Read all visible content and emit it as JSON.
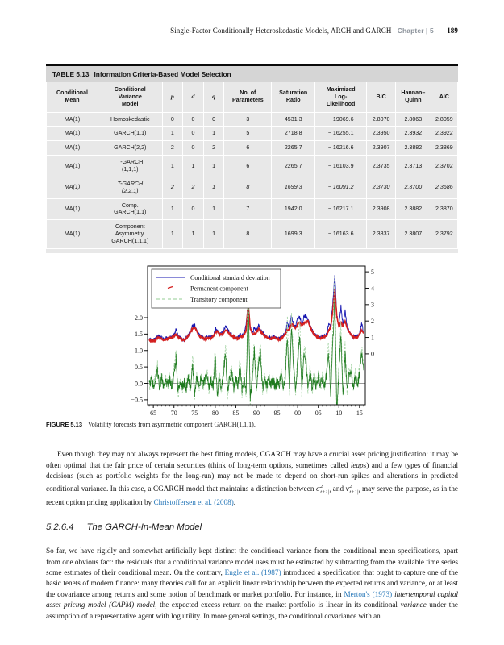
{
  "header": {
    "title": "Single-Factor Conditionally Heteroskedastic Models, ARCH and GARCH",
    "chapter": "Chapter | 5",
    "page_number": "189"
  },
  "table": {
    "label": "TABLE 5.13",
    "title": "Information Criteria-Based Model Selection",
    "columns": [
      "Conditional\nMean",
      "Conditional\nVariance\nModel",
      "p",
      "d",
      "q",
      "No. of\nParameters",
      "Saturation\nRatio",
      "Maximized\nLog-\nLikelihood",
      "BIC",
      "Hannan–\nQuinn",
      "AIC"
    ],
    "rows": [
      {
        "italic": false,
        "cells": [
          "MA(1)",
          "Homoskedastic",
          "0",
          "0",
          "0",
          "3",
          "4531.3",
          "− 19069.6",
          "2.8070",
          "2.8063",
          "2.8059"
        ]
      },
      {
        "italic": false,
        "cells": [
          "MA(1)",
          "GARCH(1,1)",
          "1",
          "0",
          "1",
          "5",
          "2718.8",
          "− 16255.1",
          "2.3950",
          "2.3932",
          "2.3922"
        ]
      },
      {
        "italic": false,
        "cells": [
          "MA(1)",
          "GARCH(2,2)",
          "2",
          "0",
          "2",
          "6",
          "2265.7",
          "− 16216.6",
          "2.3907",
          "2.3882",
          "2.3869"
        ]
      },
      {
        "italic": false,
        "cells": [
          "MA(1)",
          "T-GARCH\n(1,1,1)",
          "1",
          "1",
          "1",
          "6",
          "2265.7",
          "− 16103.9",
          "2.3735",
          "2.3713",
          "2.3702"
        ]
      },
      {
        "italic": true,
        "cells": [
          "MA(1)",
          "T-GARCH\n(2,2,1)",
          "2",
          "2",
          "1",
          "8",
          "1699.3",
          "− 16091.2",
          "2.3730",
          "2.3700",
          "2.3686"
        ]
      },
      {
        "italic": false,
        "cells": [
          "MA(1)",
          "Comp.\nGARCH(1,1)",
          "1",
          "0",
          "1",
          "7",
          "1942.0",
          "− 16217.1",
          "2.3908",
          "2.3882",
          "2.3870"
        ]
      },
      {
        "italic": false,
        "cells": [
          "MA(1)",
          "Component\nAsymmetry.\nGARCH(1,1,1)",
          "1",
          "1",
          "1",
          "8",
          "1699.3",
          "− 16163.6",
          "2.3837",
          "2.3807",
          "2.3792"
        ]
      }
    ]
  },
  "figure": {
    "label": "FIGURE 5.13",
    "caption": "Volatility forecasts from asymmetric component GARCH(1,1,1)."
  },
  "chart_data": {
    "type": "line",
    "title": "",
    "xlabel": "",
    "ylabel": "",
    "legend_position": "top-left",
    "grid": false,
    "x_axis": {
      "start": 1964,
      "step": 0.5,
      "count": 105,
      "xlim": [
        1963.6,
        2016.4
      ],
      "ticks": [
        1965,
        1970,
        1975,
        1980,
        1985,
        1990,
        1995,
        2000,
        2005,
        2010,
        2015
      ],
      "tick_labels": [
        "65",
        "70",
        "75",
        "80",
        "85",
        "90",
        "95",
        "00",
        "05",
        "10",
        "15"
      ],
      "minor_tick_step_years": 1
    },
    "left_axis": {
      "ylim": [
        -0.65,
        3.57
      ],
      "ticks": [
        -0.5,
        0,
        0.5,
        1,
        1.5,
        2
      ],
      "labels": [
        "−0.5",
        "0.0",
        "0.5",
        "1.0",
        "1.5",
        "2.0"
      ]
    },
    "right_axis": {
      "ylim": [
        -3.1,
        5.35
      ],
      "ticks": [
        0,
        1,
        2,
        3,
        4,
        5
      ],
      "labels": [
        "0",
        "1",
        "2",
        "3",
        "4",
        "5"
      ]
    },
    "series": [
      {
        "name": "Conditional standard deviation",
        "axis": "right",
        "color": "#1515b0",
        "width": 0.9,
        "dash": "",
        "jitter": 0.12,
        "values": [
          0.9,
          0.85,
          0.83,
          0.9,
          1.1,
          1.05,
          0.95,
          0.9,
          0.93,
          0.97,
          1.0,
          1.05,
          1.15,
          1.5,
          1.05,
          0.97,
          0.9,
          0.87,
          1.0,
          1.15,
          1.35,
          1.7,
          1.74,
          1.43,
          1.17,
          1.07,
          1.0,
          0.95,
          1.0,
          1.05,
          1.01,
          1.1,
          1.53,
          1.43,
          1.27,
          1.23,
          1.35,
          1.72,
          1.5,
          1.23,
          1.13,
          1.07,
          0.99,
          0.95,
          1.2,
          1.13,
          1.2,
          1.75,
          3.3,
          1.6,
          1.27,
          1.58,
          1.35,
          1.77,
          1.43,
          1.27,
          1.13,
          1.07,
          0.99,
          0.95,
          1.01,
          1.05,
          0.95,
          0.93,
          1.0,
          1.1,
          1.25,
          1.9,
          1.5,
          2.35,
          1.73,
          1.63,
          2.23,
          2.2,
          1.77,
          2.23,
          2.32,
          2.07,
          1.73,
          1.43,
          1.23,
          1.13,
          1.03,
          0.99,
          1.03,
          1.09,
          1.15,
          1.77,
          1.63,
          3.0,
          4.85,
          2.3,
          1.7,
          2.9,
          1.7,
          2.6,
          1.6,
          1.4,
          1.17,
          1.07,
          1.03,
          1.07,
          1.23,
          1.85,
          1.3
        ]
      },
      {
        "name": "Permanent component",
        "axis": "right",
        "color": "#d42020",
        "width": 1.7,
        "dash": "",
        "jitter": 0.05,
        "values": [
          0.85,
          0.8,
          0.78,
          0.85,
          0.95,
          1.0,
          0.9,
          0.85,
          0.88,
          0.92,
          0.95,
          1.0,
          1.1,
          1.2,
          1.0,
          0.92,
          0.85,
          0.82,
          0.95,
          1.1,
          1.3,
          1.55,
          1.62,
          1.38,
          1.12,
          1.02,
          0.95,
          0.9,
          0.95,
          1.0,
          0.96,
          1.05,
          1.28,
          1.38,
          1.22,
          1.18,
          1.3,
          1.42,
          1.35,
          1.18,
          1.08,
          1.02,
          0.94,
          0.9,
          1.0,
          1.08,
          1.15,
          1.45,
          3.05,
          1.55,
          1.22,
          1.18,
          1.3,
          1.52,
          1.38,
          1.22,
          1.08,
          1.02,
          0.94,
          0.9,
          0.96,
          1.0,
          0.9,
          0.88,
          0.95,
          1.05,
          1.2,
          1.5,
          1.45,
          1.85,
          1.68,
          1.58,
          1.78,
          1.9,
          1.72,
          1.88,
          1.92,
          2.02,
          1.68,
          1.38,
          1.18,
          1.08,
          0.98,
          0.94,
          0.98,
          1.04,
          1.1,
          1.42,
          1.58,
          2.6,
          3.95,
          2.25,
          1.65,
          1.95,
          1.65,
          2.05,
          1.55,
          1.35,
          1.12,
          1.02,
          0.98,
          1.02,
          1.18,
          1.45,
          1.25
        ]
      },
      {
        "name": "Transitory component",
        "axis": "left",
        "color": "#1e7a1e",
        "light_color": "#a9d6a9",
        "width": 0.8,
        "dash": "",
        "jitter": 0.15,
        "values": [
          -0.05,
          0.1,
          -0.1,
          0.15,
          0.45,
          -0.2,
          0.2,
          -0.1,
          0.1,
          -0.05,
          0.15,
          -0.1,
          0.3,
          0.75,
          -0.3,
          0.1,
          -0.1,
          0.05,
          -0.15,
          0.25,
          -0.2,
          0.6,
          -0.35,
          0.2,
          -0.1,
          0.1,
          -0.05,
          0.1,
          0.3,
          -0.15,
          0.1,
          -0.1,
          0.8,
          -0.4,
          0.2,
          -0.15,
          0.35,
          0.9,
          -0.25,
          0.15,
          0.35,
          -0.15,
          0.1,
          -0.05,
          0.5,
          -0.2,
          0.2,
          -0.25,
          2.5,
          -0.45,
          0.2,
          1.0,
          -0.2,
          0.6,
          0.9,
          -0.2,
          0.15,
          -0.1,
          0.2,
          -0.05,
          0.15,
          -0.1,
          0.05,
          -0.05,
          0.3,
          -0.15,
          0.25,
          1.45,
          -0.3,
          1.6,
          0.5,
          -0.2,
          0.65,
          1.5,
          -0.25,
          0.8,
          0.7,
          -0.2,
          0.4,
          -0.15,
          0.2,
          -0.1,
          0.2,
          -0.05,
          0.15,
          -0.1,
          0.25,
          0.9,
          -0.3,
          1.2,
          2.6,
          -0.9,
          0.4,
          1.45,
          -0.35,
          0.9,
          -0.25,
          0.35,
          0.3,
          -0.15,
          0.25,
          -0.1,
          0.35,
          0.9,
          0.4
        ]
      }
    ]
  },
  "body": {
    "section": {
      "number": "5.2.6.4",
      "title": "The GARCH-In-Mean Model"
    },
    "para1": [
      {
        "t": "Even though they may not always represent the best fitting models, CGARCH may have a crucial asset pricing justification: it may be often optimal that the fair price of certain securities (think of long-term options, sometimes called "
      },
      {
        "t": "leaps",
        "s": "i"
      },
      {
        "t": ") and a few types of financial decisions (such as portfolio weights for the long-run) may not be made to depend on short-run spikes and alterations in predicted conditional variance. In this case, a CGARCH model that maintains a distinction between "
      },
      {
        "m": {
          "base": "σ",
          "sup": "2",
          "sub": "t+1|t"
        }
      },
      {
        "t": " and "
      },
      {
        "m": {
          "base": "v",
          "sup": "2",
          "sub": "t+1|t"
        }
      },
      {
        "t": " may serve the purpose, as in the recent option pricing application by "
      },
      {
        "t": "Christoffersen et al. (2008)",
        "s": "a"
      },
      {
        "t": "."
      }
    ],
    "para2": [
      {
        "t": "So far, we have rigidly and somewhat artificially kept distinct the conditional variance from the conditional mean specifications, apart from one obvious fact: the residuals that a conditional variance model uses must be estimated by subtracting from the available time series some estimates of their conditional mean. On the contrary, "
      },
      {
        "t": "Engle et al. (1987)",
        "s": "a"
      },
      {
        "t": " introduced a specification that ought to capture one of the basic tenets of modern finance: many theories call for an explicit linear relationship between the expected returns and variance, or at least the covariance among returns and some notion of benchmark or market portfolio. For instance, in "
      },
      {
        "t": "Merton's (1973)",
        "s": "a"
      },
      {
        "t": " "
      },
      {
        "t": "intertemporal capital asset pricing model (CAPM) model",
        "s": "i"
      },
      {
        "t": ", the expected excess return on the market portfolio is linear in its conditional "
      },
      {
        "t": "variance",
        "s": "i"
      },
      {
        "t": " under the assumption of a representative agent with log utility. In more general settings, the conditional covariance with an"
      }
    ]
  },
  "colors": {
    "link_blue": "#2878b9",
    "table_title_bg": "#d5d5d5",
    "table_body_bg": "#e8e8e8",
    "header_gray": "#8d949c",
    "series_blue": "#1515b0",
    "series_red": "#d42020",
    "series_green_dark": "#1e7a1e",
    "series_green_light": "#a9d6a9"
  }
}
